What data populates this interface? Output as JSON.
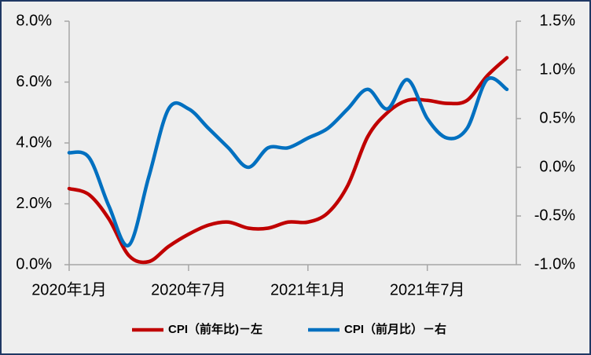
{
  "chart_data": {
    "type": "line",
    "categories": [
      "2020年1月",
      null,
      null,
      null,
      null,
      null,
      "2020年7月",
      null,
      null,
      null,
      null,
      null,
      "2021年1月",
      null,
      null,
      null,
      null,
      null,
      "2021年7月",
      null,
      null,
      null,
      null
    ],
    "series": [
      {
        "name": "CPI（前年比)－左",
        "color": "#c00000",
        "axis": "y",
        "values": [
          2.5,
          2.3,
          1.5,
          0.3,
          0.1,
          0.6,
          1.0,
          1.3,
          1.4,
          1.2,
          1.2,
          1.4,
          1.4,
          1.7,
          2.6,
          4.2,
          5.0,
          5.4,
          5.4,
          5.3,
          5.4,
          6.2,
          6.8
        ]
      },
      {
        "name": "CPI（前月比）－右",
        "color": "#0070c0",
        "axis": "y2",
        "values": [
          0.15,
          0.1,
          -0.4,
          -0.8,
          -0.1,
          0.6,
          0.6,
          0.4,
          0.2,
          0.0,
          0.2,
          0.2,
          0.3,
          0.4,
          0.6,
          0.8,
          0.6,
          0.9,
          0.5,
          0.3,
          0.4,
          0.9,
          0.8
        ]
      }
    ],
    "ylim": [
      0,
      8
    ],
    "yticks": [
      {
        "value": 0,
        "label": "0.0%"
      },
      {
        "value": 2,
        "label": "2.0%"
      },
      {
        "value": 4,
        "label": "4.0%"
      },
      {
        "value": 6,
        "label": "6.0%"
      },
      {
        "value": 8,
        "label": "8.0%"
      }
    ],
    "y2lim": [
      -1,
      1.5
    ],
    "y2ticks": [
      {
        "value": -1,
        "label": "-1.0%"
      },
      {
        "value": -0.5,
        "label": "-0.5%"
      },
      {
        "value": 0,
        "label": "0.0%"
      },
      {
        "value": 0.5,
        "label": "0.5%"
      },
      {
        "value": 1,
        "label": "1.0%"
      },
      {
        "value": 1.5,
        "label": "1.5%"
      }
    ],
    "legend": "bottom"
  }
}
